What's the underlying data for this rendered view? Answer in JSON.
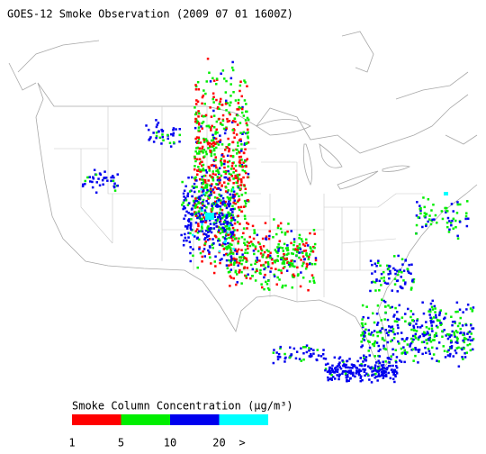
{
  "title": "GOES-12 Smoke Observation (2009 07 01  1600Z)",
  "legend": {
    "title": "Smoke Column Concentration (μg/m³)",
    "bins": [
      1,
      5,
      10,
      20
    ],
    "open_label": ">",
    "colors": [
      "#ff0000",
      "#00ee00",
      "#0000ee",
      "#00ffff"
    ]
  }
}
